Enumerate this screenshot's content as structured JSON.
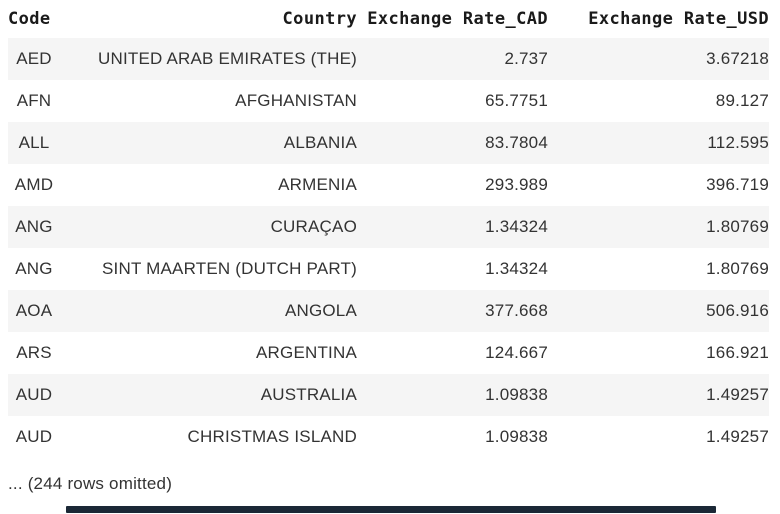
{
  "chart_data": {
    "type": "table",
    "columns": [
      "Code",
      "Country",
      "Exchange Rate_CAD",
      "Exchange Rate_USD"
    ],
    "rows": [
      [
        "AED",
        "UNITED ARAB EMIRATES (THE)",
        "2.737",
        "3.67218"
      ],
      [
        "AFN",
        "AFGHANISTAN",
        "65.7751",
        "89.127"
      ],
      [
        "ALL",
        "ALBANIA",
        "83.7804",
        "112.595"
      ],
      [
        "AMD",
        "ARMENIA",
        "293.989",
        "396.719"
      ],
      [
        "ANG",
        "CURAÇAO",
        "1.34324",
        "1.80769"
      ],
      [
        "ANG",
        "SINT MAARTEN (DUTCH PART)",
        "1.34324",
        "1.80769"
      ],
      [
        "AOA",
        "ANGOLA",
        "377.668",
        "506.916"
      ],
      [
        "ARS",
        "ARGENTINA",
        "124.667",
        "166.921"
      ],
      [
        "AUD",
        "AUSTRALIA",
        "1.09838",
        "1.49257"
      ],
      [
        "AUD",
        "CHRISTMAS ISLAND",
        "1.09838",
        "1.49257"
      ]
    ],
    "footer_note": "... (244 rows omitted)",
    "layout": {
      "striped": true,
      "stripe_color": "#f5f5f5",
      "header_text_color": "#1a1a1a",
      "body_text_color": "#333333",
      "scrollbar_color": "#1b2836"
    }
  }
}
